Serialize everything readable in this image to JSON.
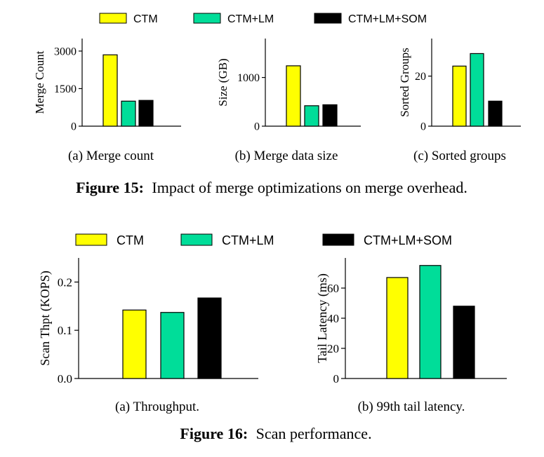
{
  "series_names": [
    "CTM",
    "CTM+LM",
    "CTM+LM+SOM"
  ],
  "colors": {
    "ctm": "#ffff00",
    "lm": "#00dd99",
    "som": "#000000"
  },
  "figure15": {
    "label": "Figure 15:",
    "caption": "Impact of merge optimizations on merge overhead."
  },
  "figure16": {
    "label": "Figure 16:",
    "caption": "Scan performance."
  },
  "chart_data": [
    {
      "type": "bar",
      "subcaption": "(a)  Merge count",
      "ylabel": "Merge Count",
      "categories": [
        "CTM",
        "CTM+LM",
        "CTM+LM+SOM"
      ],
      "values": [
        2850,
        1000,
        1030
      ],
      "yticks": [
        0,
        1500,
        3000
      ],
      "ytick_labels": [
        "0",
        "1500",
        "3000"
      ],
      "ylim": [
        0,
        3500
      ]
    },
    {
      "type": "bar",
      "subcaption": "(b)  Merge data size",
      "ylabel": "Size (GB)",
      "categories": [
        "CTM",
        "CTM+LM",
        "CTM+LM+SOM"
      ],
      "values": [
        1240,
        420,
        440
      ],
      "yticks": [
        0,
        1000
      ],
      "ytick_labels": [
        "0",
        "1000"
      ],
      "ylim": [
        0,
        1800
      ]
    },
    {
      "type": "bar",
      "subcaption": "(c)  Sorted groups",
      "ylabel": "Sorted Groups",
      "categories": [
        "CTM",
        "CTM+LM",
        "CTM+LM+SOM"
      ],
      "values": [
        24,
        29,
        10
      ],
      "yticks": [
        0,
        20
      ],
      "ytick_labels": [
        "0",
        "20"
      ],
      "ylim": [
        0,
        35
      ]
    },
    {
      "type": "bar",
      "subcaption": "(a)  Throughput.",
      "ylabel": "Scan Thpt (KOPS)",
      "categories": [
        "CTM",
        "CTM+LM",
        "CTM+LM+SOM"
      ],
      "values": [
        0.142,
        0.137,
        0.167
      ],
      "yticks": [
        0,
        0.1,
        0.2
      ],
      "ytick_labels": [
        "0.0",
        "0.1",
        "0.2"
      ],
      "ylim": [
        0,
        0.25
      ]
    },
    {
      "type": "bar",
      "subcaption": "(b)  99th tail latency.",
      "ylabel": "Tail Latency (ms)",
      "categories": [
        "CTM",
        "CTM+LM",
        "CTM+LM+SOM"
      ],
      "values": [
        67,
        75,
        48
      ],
      "yticks": [
        0,
        20,
        40,
        60
      ],
      "ytick_labels": [
        "0",
        "20",
        "40",
        "60"
      ],
      "ylim": [
        0,
        80
      ]
    }
  ]
}
